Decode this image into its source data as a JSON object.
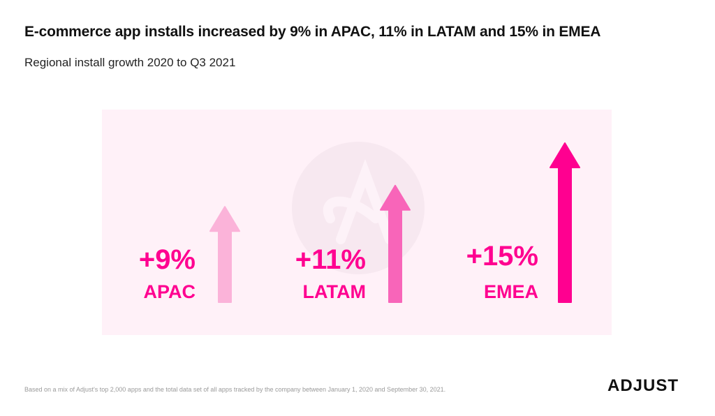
{
  "header": {
    "title": "E-commerce app installs increased by 9% in APAC, 11% in LATAM and 15% in EMEA",
    "subtitle": "Regional install growth 2020 to Q3 2021"
  },
  "chart_data": {
    "type": "bar",
    "title": "E-commerce app installs increased by 9% in APAC, 11% in LATAM and 15% in EMEA",
    "subtitle": "Regional install growth 2020 to Q3 2021",
    "categories": [
      "APAC",
      "LATAM",
      "EMEA"
    ],
    "values": [
      9,
      11,
      15
    ],
    "value_labels": [
      "+9%",
      "+11%",
      "+15%"
    ],
    "unit": "%",
    "ylim": [
      0,
      15
    ],
    "grid": false,
    "colors": [
      "#fbb3d9",
      "#f865b9",
      "#ff0090"
    ]
  },
  "footer": {
    "footnote": "Based on a mix of Adjust's top 2,000 apps and the total data set of all apps tracked by the company between January 1, 2020 and September 30, 2021.",
    "logo": "ADJUST"
  }
}
